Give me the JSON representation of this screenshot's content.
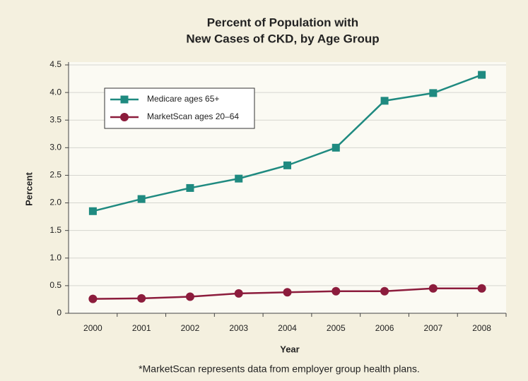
{
  "chart_data": {
    "type": "line",
    "title": [
      "Percent of Population with",
      "New Cases of CKD, by Age Group"
    ],
    "x_label": "Year",
    "y_label": "Percent",
    "footnote": "*MarketScan represents data from employer group health plans.",
    "categories": [
      "2000",
      "2001",
      "2002",
      "2003",
      "2004",
      "2005",
      "2006",
      "2007",
      "2008"
    ],
    "series": [
      {
        "name": "Medicare ages 65+",
        "color": "#1f8a80",
        "marker": "square",
        "values": [
          1.85,
          2.07,
          2.27,
          2.44,
          2.68,
          3.0,
          3.85,
          3.99,
          4.32
        ]
      },
      {
        "name": "MarketScan ages 20–64",
        "color": "#8c1c3c",
        "marker": "circle",
        "values": [
          0.26,
          0.27,
          0.3,
          0.36,
          0.38,
          0.4,
          0.4,
          0.45,
          0.45
        ]
      }
    ],
    "ylim": [
      0,
      4.5
    ],
    "yticks": [
      0,
      0.5,
      {
        "value": 1,
        "label": "1.0"
      },
      1.5,
      {
        "value": 2,
        "label": "2.0"
      },
      2.5,
      {
        "value": 3,
        "label": "3.0"
      },
      3.5,
      {
        "value": 4,
        "label": "4.0"
      },
      4.5
    ],
    "grid": true,
    "legend": "upper left"
  }
}
